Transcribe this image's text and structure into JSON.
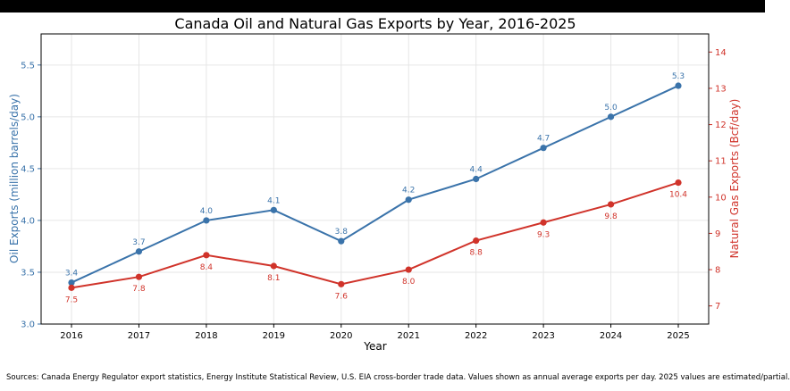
{
  "chart_data": {
    "type": "line",
    "title": "Canada Oil and Natural Gas Exports by Year, 2016-2025",
    "xlabel": "Year",
    "ylabel_left": "Oil Exports (million barrels/day)",
    "ylabel_right": "Natural Gas Exports (Bcf/day)",
    "categories": [
      "2016",
      "2017",
      "2018",
      "2019",
      "2020",
      "2021",
      "2022",
      "2023",
      "2024",
      "2025"
    ],
    "ylim_left": [
      3.0,
      5.8
    ],
    "yticks_left": [
      "3.0",
      "3.5",
      "4.0",
      "4.5",
      "5.0",
      "5.5"
    ],
    "ylim_right": [
      6.5,
      14.5
    ],
    "yticks_right": [
      "7",
      "8",
      "9",
      "10",
      "11",
      "12",
      "13",
      "14"
    ],
    "grid": true,
    "series": [
      {
        "axis": "left",
        "color": "#3a73aa",
        "values": [
          3.4,
          3.7,
          4.0,
          4.1,
          3.8,
          4.2,
          4.4,
          4.7,
          5.0,
          5.3
        ],
        "labels": [
          "3.4",
          "3.7",
          "4.0",
          "4.1",
          "3.8",
          "4.2",
          "4.4",
          "4.7",
          "5.0",
          "5.3"
        ],
        "label_position": "above"
      },
      {
        "axis": "right",
        "color": "#d0332a",
        "values": [
          7.5,
          7.8,
          8.4,
          8.1,
          7.6,
          8.0,
          8.8,
          9.3,
          9.8,
          10.4
        ],
        "labels": [
          "7.5",
          "7.8",
          "8.4",
          "8.1",
          "7.6",
          "8.0",
          "8.8",
          "9.3",
          "9.8",
          "10.4"
        ],
        "label_position": "below"
      }
    ]
  },
  "footer": {
    "source": "Sources: Canada Energy Regulator export statistics, Energy Institute Statistical Review, U.S. EIA cross-border trade data. Values shown as annual average exports per day. 2025 values are estimated/partial."
  },
  "colors": {
    "left_axis": "#3a73aa",
    "right_axis": "#d0332a",
    "grid": "#e6e6e6"
  }
}
